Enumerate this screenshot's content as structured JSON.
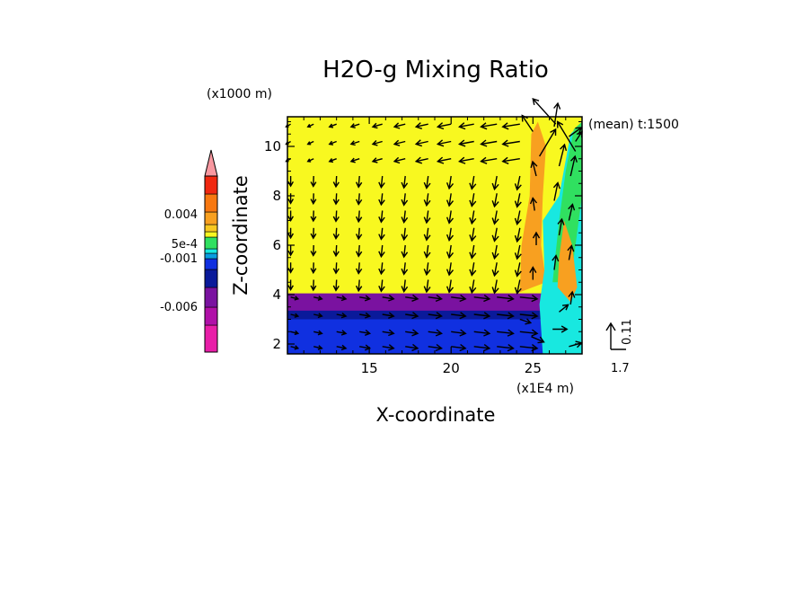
{
  "chart_data": {
    "type": "heatmap",
    "title": "H2O-g Mixing Ratio",
    "subtitle": "(mean) t:1500",
    "xlabel": "X-coordinate",
    "ylabel": "Z-coordinate",
    "x_unit": "(x1E4 m)",
    "y_unit": "(x1000 m)",
    "xlim": [
      10,
      28
    ],
    "ylim": [
      1.6,
      11.2
    ],
    "x_ticks": [
      15,
      20,
      25
    ],
    "y_ticks": [
      2,
      4,
      6,
      8,
      10
    ],
    "x_tick_labels": [
      "15",
      "20",
      "25"
    ],
    "y_tick_labels": [
      "2",
      "4",
      "6",
      "8",
      "10"
    ],
    "colorbar": {
      "tick_labels": [
        "0.004",
        "5e-4",
        "-0.001",
        "-0.006"
      ],
      "colors": [
        "#e81ea8",
        "#b010a8",
        "#7a12a0",
        "#0a1a9a",
        "#1030e0",
        "#0a9ee0",
        "#18e8e0",
        "#30e060",
        "#f8f820",
        "#f8c820",
        "#f8a020",
        "#f87810",
        "#f02810",
        "#f898a0"
      ]
    },
    "vector_reference": {
      "x_value": "1.7",
      "z_value": "0.11"
    },
    "regions": [
      {
        "name": "upper-moist",
        "color": "#f8f820"
      },
      {
        "name": "cold-pool-violet",
        "color": "#7a12a0"
      },
      {
        "name": "cold-pool-navy",
        "color": "#0a1a9a"
      },
      {
        "name": "cold-pool-blue",
        "color": "#1030e0"
      },
      {
        "name": "plume-orange",
        "color": "#f8a020"
      },
      {
        "name": "plume-cyan",
        "color": "#18e8e0"
      },
      {
        "name": "plume-green",
        "color": "#30e060"
      }
    ]
  }
}
